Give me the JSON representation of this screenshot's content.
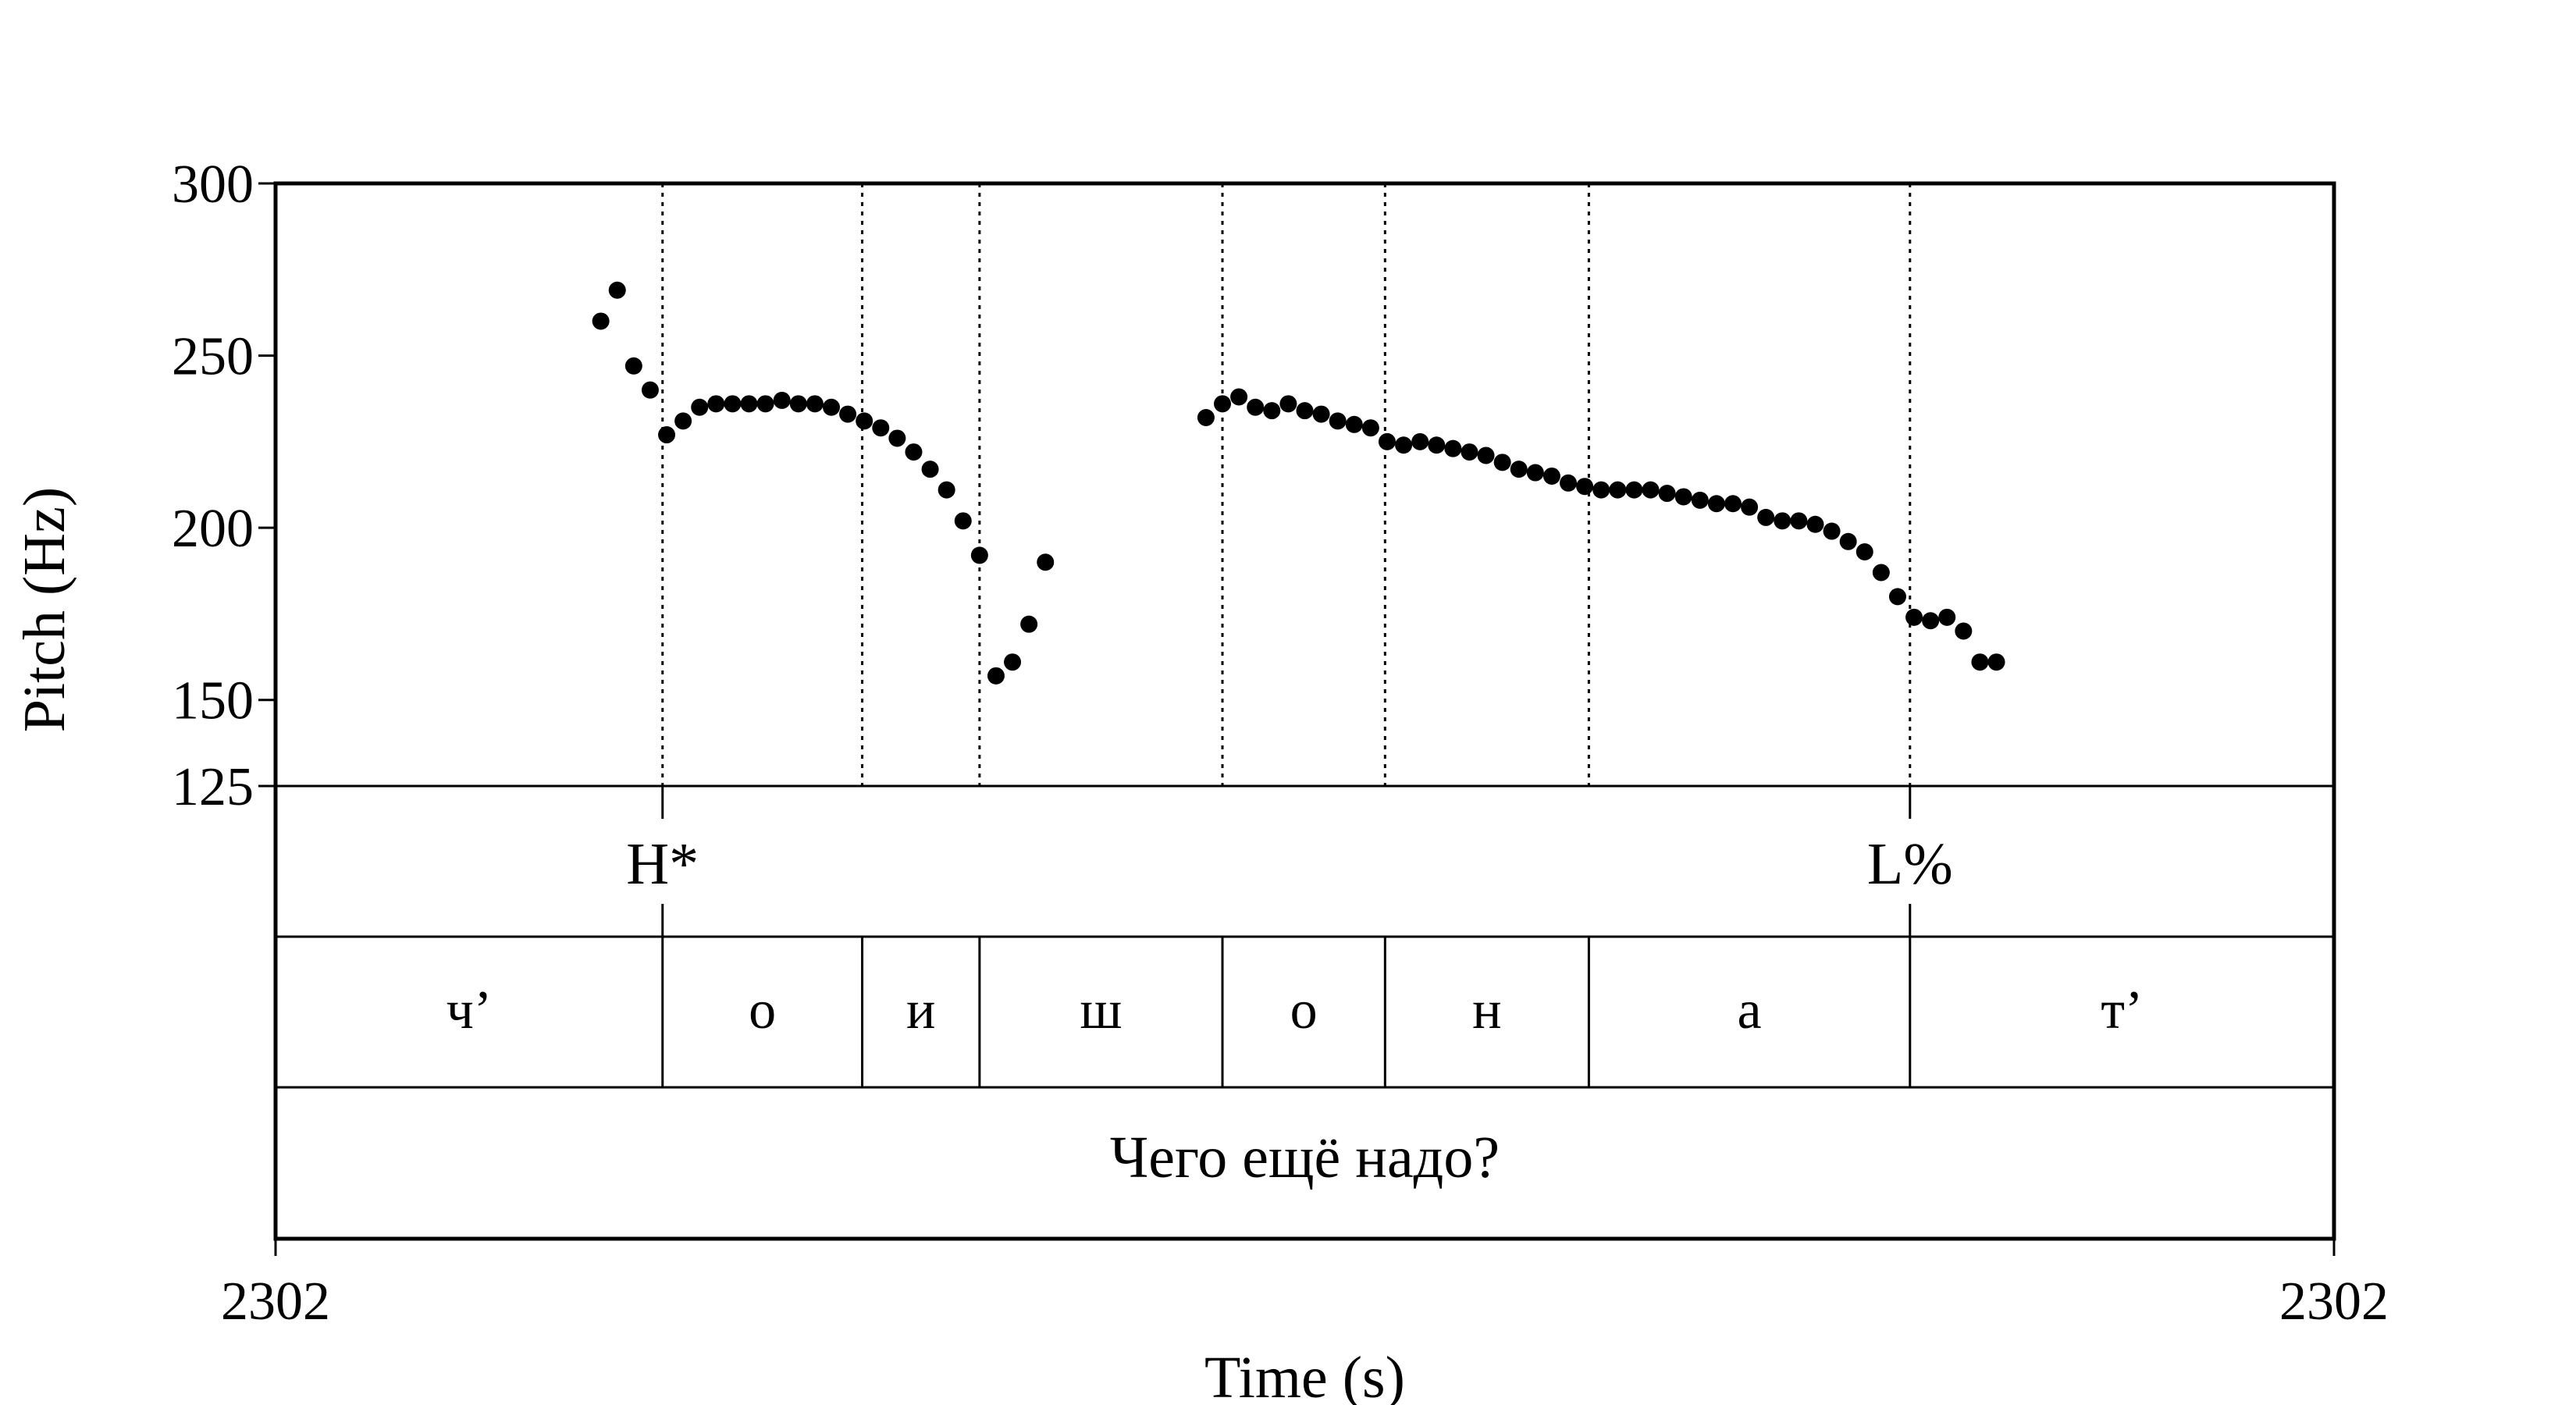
{
  "chart_data": {
    "type": "scatter",
    "title": "",
    "xlabel": "Time (s)",
    "ylabel": "Pitch (Hz)",
    "ylim": [
      125,
      300
    ],
    "yticks": [
      125,
      150,
      200,
      250,
      300
    ],
    "x_range_labels": [
      "2302",
      "2302"
    ],
    "x_unit_note": "",
    "segment_boundaries": [
      0.188,
      0.285,
      0.342,
      0.46,
      0.539,
      0.638,
      0.794
    ],
    "tone_tier": [
      {
        "label": "H*",
        "time": 0.188
      },
      {
        "label": "L%",
        "time": 0.794
      }
    ],
    "phone_tier": [
      {
        "label": "ч’",
        "start": 0.0,
        "end": 0.188
      },
      {
        "label": "о",
        "start": 0.188,
        "end": 0.285
      },
      {
        "label": "и",
        "start": 0.285,
        "end": 0.342
      },
      {
        "label": "ш",
        "start": 0.342,
        "end": 0.46
      },
      {
        "label": "о",
        "start": 0.46,
        "end": 0.539
      },
      {
        "label": "н",
        "start": 0.539,
        "end": 0.638
      },
      {
        "label": "а",
        "start": 0.638,
        "end": 0.794
      },
      {
        "label": "т’",
        "start": 0.794,
        "end": 1.0
      }
    ],
    "sentence_tier": "Чего ещё надо?",
    "series": [
      {
        "values": [
          [
            0.158,
            260
          ],
          [
            0.166,
            269
          ],
          [
            0.174,
            247
          ],
          [
            0.182,
            240
          ],
          [
            0.19,
            227
          ],
          [
            0.198,
            231
          ],
          [
            0.206,
            235
          ],
          [
            0.214,
            236
          ],
          [
            0.222,
            236
          ],
          [
            0.23,
            236
          ],
          [
            0.238,
            236
          ],
          [
            0.246,
            237
          ],
          [
            0.254,
            236
          ],
          [
            0.262,
            236
          ],
          [
            0.27,
            235
          ],
          [
            0.278,
            233
          ],
          [
            0.286,
            231
          ],
          [
            0.294,
            229
          ],
          [
            0.302,
            226
          ],
          [
            0.31,
            222
          ],
          [
            0.318,
            217
          ],
          [
            0.326,
            211
          ],
          [
            0.334,
            202
          ],
          [
            0.342,
            192
          ],
          [
            0.35,
            157
          ],
          [
            0.358,
            161
          ],
          [
            0.366,
            172
          ],
          [
            0.374,
            190
          ],
          [
            0.452,
            232
          ],
          [
            0.46,
            236
          ],
          [
            0.468,
            238
          ],
          [
            0.476,
            235
          ],
          [
            0.484,
            234
          ],
          [
            0.492,
            236
          ],
          [
            0.5,
            234
          ],
          [
            0.508,
            233
          ],
          [
            0.516,
            231
          ],
          [
            0.524,
            230
          ],
          [
            0.532,
            229
          ],
          [
            0.54,
            225
          ],
          [
            0.548,
            224
          ],
          [
            0.556,
            225
          ],
          [
            0.564,
            224
          ],
          [
            0.572,
            223
          ],
          [
            0.58,
            222
          ],
          [
            0.588,
            221
          ],
          [
            0.596,
            219
          ],
          [
            0.604,
            217
          ],
          [
            0.612,
            216
          ],
          [
            0.62,
            215
          ],
          [
            0.628,
            213
          ],
          [
            0.636,
            212
          ],
          [
            0.644,
            211
          ],
          [
            0.652,
            211
          ],
          [
            0.66,
            211
          ],
          [
            0.668,
            211
          ],
          [
            0.676,
            210
          ],
          [
            0.684,
            209
          ],
          [
            0.692,
            208
          ],
          [
            0.7,
            207
          ],
          [
            0.708,
            207
          ],
          [
            0.716,
            206
          ],
          [
            0.724,
            203
          ],
          [
            0.732,
            202
          ],
          [
            0.74,
            202
          ],
          [
            0.748,
            201
          ],
          [
            0.756,
            199
          ],
          [
            0.764,
            196
          ],
          [
            0.772,
            193
          ],
          [
            0.78,
            187
          ],
          [
            0.788,
            180
          ],
          [
            0.796,
            174
          ],
          [
            0.804,
            173
          ],
          [
            0.812,
            174
          ],
          [
            0.82,
            170
          ],
          [
            0.828,
            161
          ],
          [
            0.836,
            161
          ]
        ]
      }
    ]
  }
}
